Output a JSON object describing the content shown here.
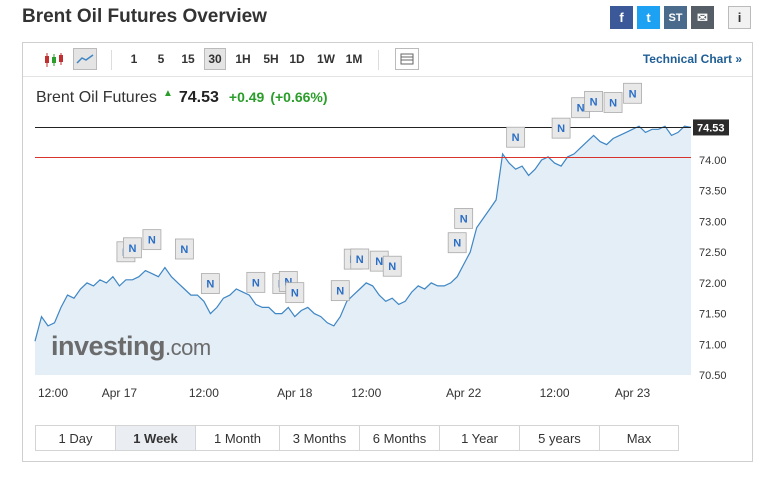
{
  "page": {
    "title": "Brent Oil Futures Overview"
  },
  "share": {
    "facebook": "f",
    "twitter": "t",
    "stocktwits": "ST",
    "email": "✉",
    "info": "i"
  },
  "toolbar": {
    "intervals": [
      "1",
      "5",
      "15",
      "30",
      "1H",
      "5H",
      "1D",
      "1W",
      "1M"
    ],
    "active_interval": "30",
    "technical_chart": "Technical Chart »"
  },
  "quote": {
    "name": "Brent Oil Futures",
    "last": "74.53",
    "change": "+0.49",
    "change_pct": "(+0.66%)",
    "color_up": "#2a9d2a"
  },
  "ranges": {
    "items": [
      "1 Day",
      "1 Week",
      "1 Month",
      "3 Months",
      "6 Months",
      "1 Year",
      "5 years",
      "Max"
    ],
    "active": "1 Week"
  },
  "watermark": {
    "brand": "investing",
    "suffix": ".com"
  },
  "chart_data": {
    "type": "area",
    "title": "Brent Oil Futures",
    "x_ticks": [
      "12:00",
      "Apr 17",
      "12:00",
      "Apr 18",
      "12:00",
      "Apr 22",
      "12:00",
      "Apr 23"
    ],
    "y_ticks": [
      "74.00",
      "73.50",
      "73.00",
      "72.50",
      "72.00",
      "71.50",
      "71.00",
      "70.50"
    ],
    "ylim": [
      70.5,
      74.7
    ],
    "last_price_label": "74.53",
    "last_price": 74.53,
    "reference_line": 74.04,
    "news_marker_label": "N",
    "series": [
      {
        "values": [
          71.05,
          71.45,
          71.3,
          71.35,
          71.6,
          71.8,
          71.75,
          71.9,
          72.0,
          71.95,
          72.05,
          72.0,
          72.1,
          71.95,
          72.05,
          72.05,
          72.1,
          72.2,
          72.15,
          72.1,
          72.25,
          72.1,
          72.0,
          71.9,
          71.8,
          71.8,
          71.7,
          71.5,
          71.6,
          71.75,
          71.8,
          71.9,
          71.85,
          71.8,
          71.65,
          71.6,
          71.6,
          71.5,
          71.5,
          71.6,
          71.45,
          71.55,
          71.6,
          71.5,
          71.45,
          71.35,
          71.3,
          71.45,
          71.7,
          71.8,
          71.9,
          72.0,
          71.95,
          71.8,
          71.7,
          71.75,
          71.65,
          71.7,
          71.85,
          71.95,
          71.9,
          72.0,
          71.95,
          71.95,
          72.0,
          72.1,
          72.3,
          72.5,
          72.9,
          73.05,
          73.2,
          73.35,
          74.1,
          73.95,
          73.85,
          73.9,
          73.75,
          73.85,
          74.0,
          74.05,
          73.95,
          73.9,
          74.05,
          74.1,
          74.2,
          74.3,
          74.4,
          74.3,
          74.25,
          74.35,
          74.4,
          74.45,
          74.5,
          74.55,
          74.45,
          74.5,
          74.5,
          74.55,
          74.4,
          74.45,
          74.55,
          74.53
        ]
      }
    ]
  },
  "colors": {
    "line": "#3f86c4",
    "fill": "#e3eef7",
    "last_line": "#222222",
    "reference_line": "#d9332e",
    "news_marker_bg": "#e8e8e8",
    "news_marker_text": "#2a6ec6"
  }
}
